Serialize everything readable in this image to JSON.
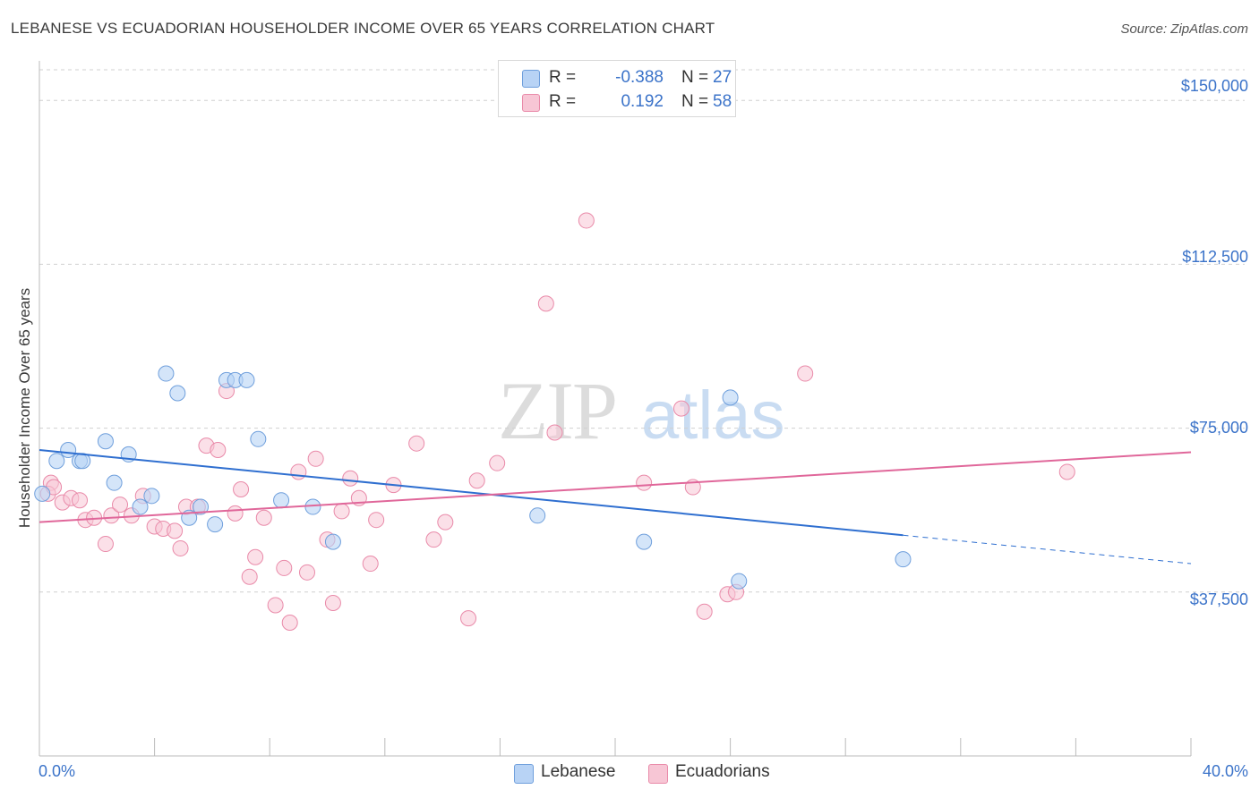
{
  "title": "LEBANESE VS ECUADORIAN HOUSEHOLDER INCOME OVER 65 YEARS CORRELATION CHART",
  "source": "Source: ZipAtlas.com",
  "watermark": {
    "zip": "ZIP",
    "atlas": "atlas"
  },
  "colors": {
    "blue_fill": "#b8d3f5",
    "blue_stroke": "#6f9fdc",
    "blue_line": "#2f6fd0",
    "pink_fill": "#f7c6d5",
    "pink_stroke": "#e98aa9",
    "pink_line": "#e0679a",
    "axis_text": "#3b73c9",
    "grid": "#d0d0d0"
  },
  "legend_top": [
    {
      "label": "R =",
      "r": "-0.388",
      "n_label": "N =",
      "n": "27",
      "color": "#b8d3f5"
    },
    {
      "label": "R =",
      "r": "0.192",
      "n_label": "N =",
      "n": "58",
      "color": "#f7c6d5"
    }
  ],
  "legend_bottom": [
    {
      "label": "Lebanese",
      "color": "#b8d3f5"
    },
    {
      "label": "Ecuadorians",
      "color": "#f7c6d5"
    }
  ],
  "chart_data": {
    "type": "scatter",
    "title": "LEBANESE VS ECUADORIAN HOUSEHOLDER INCOME OVER 65 YEARS CORRELATION CHART",
    "xlabel": "",
    "ylabel": "Householder Income Over 65 years",
    "xlim": [
      0,
      40
    ],
    "ylim": [
      0,
      157000
    ],
    "x_tick_labels": [
      "0.0%",
      "40.0%"
    ],
    "y_ticks": [
      37500,
      75000,
      112500,
      150000
    ],
    "y_tick_labels": [
      "$37,500",
      "$75,000",
      "$112,500",
      "$150,000"
    ],
    "grid": true,
    "series": [
      {
        "name": "Lebanese",
        "points": [
          [
            0.1,
            60000
          ],
          [
            0.6,
            67500
          ],
          [
            1.0,
            70000
          ],
          [
            1.4,
            67500
          ],
          [
            1.5,
            67500
          ],
          [
            2.3,
            72000
          ],
          [
            2.6,
            62500
          ],
          [
            3.1,
            69000
          ],
          [
            3.5,
            57000
          ],
          [
            3.9,
            59500
          ],
          [
            4.4,
            87500
          ],
          [
            4.8,
            83000
          ],
          [
            5.2,
            54500
          ],
          [
            5.6,
            57000
          ],
          [
            6.1,
            53000
          ],
          [
            6.5,
            86000
          ],
          [
            6.8,
            86000
          ],
          [
            7.2,
            86000
          ],
          [
            7.6,
            72500
          ],
          [
            8.4,
            58500
          ],
          [
            9.5,
            57000
          ],
          [
            10.2,
            49000
          ],
          [
            17.3,
            55000
          ],
          [
            21.0,
            49000
          ],
          [
            24.0,
            82000
          ],
          [
            24.3,
            40000
          ],
          [
            30.0,
            45000
          ]
        ],
        "trend": {
          "x0": 0,
          "y0": 70000,
          "x1": 30,
          "y1": 50500,
          "dash_to_x": 40,
          "dash_to_y": 44000
        }
      },
      {
        "name": "Ecuadorians",
        "points": [
          [
            0.4,
            62500
          ],
          [
            0.8,
            58000
          ],
          [
            1.1,
            59000
          ],
          [
            1.4,
            58500
          ],
          [
            1.6,
            54000
          ],
          [
            1.9,
            54500
          ],
          [
            2.3,
            48500
          ],
          [
            2.5,
            55000
          ],
          [
            2.8,
            57500
          ],
          [
            3.2,
            55000
          ],
          [
            3.6,
            59500
          ],
          [
            4.0,
            52500
          ],
          [
            4.3,
            52000
          ],
          [
            4.7,
            51500
          ],
          [
            4.9,
            47500
          ],
          [
            5.1,
            57000
          ],
          [
            5.5,
            57000
          ],
          [
            5.8,
            71000
          ],
          [
            6.2,
            70000
          ],
          [
            6.5,
            83500
          ],
          [
            6.8,
            55500
          ],
          [
            7.0,
            61000
          ],
          [
            7.3,
            41000
          ],
          [
            7.5,
            45500
          ],
          [
            7.8,
            54500
          ],
          [
            8.2,
            34500
          ],
          [
            8.5,
            43000
          ],
          [
            8.7,
            30500
          ],
          [
            9.0,
            65000
          ],
          [
            9.3,
            42000
          ],
          [
            9.6,
            68000
          ],
          [
            10.0,
            49500
          ],
          [
            10.2,
            35000
          ],
          [
            10.5,
            56000
          ],
          [
            10.8,
            63500
          ],
          [
            11.1,
            59000
          ],
          [
            11.5,
            44000
          ],
          [
            11.7,
            54000
          ],
          [
            12.3,
            62000
          ],
          [
            13.1,
            71500
          ],
          [
            13.7,
            49500
          ],
          [
            14.1,
            53500
          ],
          [
            14.9,
            31500
          ],
          [
            15.2,
            63000
          ],
          [
            15.9,
            67000
          ],
          [
            17.6,
            103500
          ],
          [
            17.9,
            74000
          ],
          [
            19.0,
            122500
          ],
          [
            21.0,
            62500
          ],
          [
            22.3,
            79500
          ],
          [
            22.7,
            61500
          ],
          [
            23.1,
            33000
          ],
          [
            23.9,
            37000
          ],
          [
            24.2,
            37500
          ],
          [
            26.6,
            87500
          ],
          [
            35.7,
            65000
          ],
          [
            0.3,
            60000
          ],
          [
            0.5,
            61500
          ]
        ],
        "trend": {
          "x0": 0,
          "y0": 53500,
          "x1": 40,
          "y1": 69500
        }
      }
    ]
  }
}
